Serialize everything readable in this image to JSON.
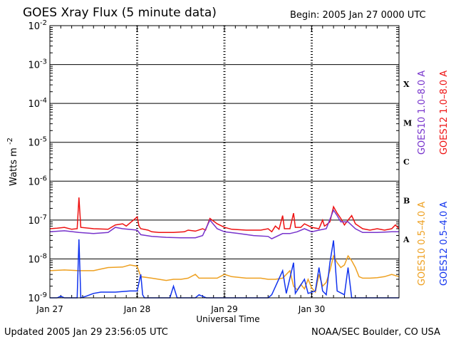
{
  "header": {
    "title": "GOES Xray Flux (5 minute data)",
    "begin": "Begin:  2005 Jan 27 0000 UTC"
  },
  "footer": {
    "updated": "Updated 2005 Jan 29 23:56:05 UTC",
    "credit": "NOAA/SEC Boulder, CO USA"
  },
  "chart_data": {
    "type": "line",
    "xlabel": "Universal Time",
    "ylabel_base": "Watts m",
    "ylabel_exp": "-2",
    "y_scale": "log",
    "ylim": [
      1e-09,
      0.01
    ],
    "xlim": [
      "2005-01-27 00:00",
      "2005-01-30 00:00"
    ],
    "x_ticks": [
      "Jan 27",
      "Jan 28",
      "Jan 29",
      "Jan 30"
    ],
    "y_ticks": [
      {
        "base": "10",
        "exp": "-2"
      },
      {
        "base": "10",
        "exp": "-3"
      },
      {
        "base": "10",
        "exp": "-4"
      },
      {
        "base": "10",
        "exp": "-5"
      },
      {
        "base": "10",
        "exp": "-6"
      },
      {
        "base": "10",
        "exp": "-7"
      },
      {
        "base": "10",
        "exp": "-8"
      },
      {
        "base": "10",
        "exp": "-9"
      }
    ],
    "flare_classes": [
      "X",
      "M",
      "C",
      "B",
      "A"
    ],
    "grid": "horizontal at each decade",
    "legend": [
      {
        "label": "GOES10 1.0–8.0 A",
        "color": "#7733cc"
      },
      {
        "label": "GOES12 1.0–8.0 A",
        "color": "#ee1111"
      },
      {
        "label": "GOES10 0.5–4.0 A",
        "color": "#eea020"
      },
      {
        "label": "GOES12 0.5–4.0 A",
        "color": "#1133ee"
      }
    ],
    "series": [
      {
        "name": "GOES12 1.0–8.0 A",
        "color": "#ee1111",
        "points": [
          [
            0,
            6e-08
          ],
          [
            2,
            6.2e-08
          ],
          [
            4,
            6.5e-08
          ],
          [
            6,
            5.8e-08
          ],
          [
            7.5,
            6e-08
          ],
          [
            8,
            3.8e-07
          ],
          [
            8.5,
            6.5e-08
          ],
          [
            12,
            6e-08
          ],
          [
            16,
            5.8e-08
          ],
          [
            18,
            7.5e-08
          ],
          [
            20,
            8e-08
          ],
          [
            21,
            7e-08
          ],
          [
            24,
            1.2e-07
          ],
          [
            24.5,
            7e-08
          ],
          [
            25,
            6e-08
          ],
          [
            27,
            5.5e-08
          ],
          [
            28,
            5e-08
          ],
          [
            30,
            4.8e-08
          ],
          [
            34,
            4.8e-08
          ],
          [
            37,
            5e-08
          ],
          [
            38,
            5.5e-08
          ],
          [
            40,
            5.2e-08
          ],
          [
            42,
            6e-08
          ],
          [
            42.8,
            5.5e-08
          ],
          [
            44,
            1.1e-07
          ],
          [
            46,
            8e-08
          ],
          [
            48,
            6.5e-08
          ],
          [
            50,
            5.8e-08
          ],
          [
            54,
            5.5e-08
          ],
          [
            58,
            5.5e-08
          ],
          [
            60,
            6e-08
          ],
          [
            61,
            5e-08
          ],
          [
            62,
            7e-08
          ],
          [
            63,
            5.8e-08
          ],
          [
            64,
            1.3e-07
          ],
          [
            64.5,
            6e-08
          ],
          [
            66,
            6e-08
          ],
          [
            67,
            1.5e-07
          ],
          [
            67.5,
            6.5e-08
          ],
          [
            69,
            6.5e-08
          ],
          [
            70,
            8e-08
          ],
          [
            72,
            6.5e-08
          ],
          [
            74,
            6e-08
          ],
          [
            75,
            1e-07
          ],
          [
            75.5,
            7e-08
          ],
          [
            76,
            7.5e-08
          ],
          [
            77,
            9e-08
          ],
          [
            78,
            2.2e-07
          ],
          [
            79,
            1.5e-07
          ],
          [
            80,
            1.1e-07
          ],
          [
            81,
            7.5e-08
          ],
          [
            82,
            1e-07
          ],
          [
            83,
            1.3e-07
          ],
          [
            84,
            8e-08
          ],
          [
            86,
            6e-08
          ],
          [
            88,
            5.5e-08
          ],
          [
            90,
            6e-08
          ],
          [
            92,
            5.5e-08
          ],
          [
            94,
            6e-08
          ],
          [
            95,
            7.5e-08
          ],
          [
            96,
            6e-08
          ]
        ]
      },
      {
        "name": "GOES10 1.0–8.0 A",
        "color": "#7733cc",
        "points": [
          [
            0,
            5e-08
          ],
          [
            4,
            5.3e-08
          ],
          [
            8,
            4.8e-08
          ],
          [
            12,
            4.5e-08
          ],
          [
            16,
            4.8e-08
          ],
          [
            18,
            6.5e-08
          ],
          [
            20,
            6e-08
          ],
          [
            24,
            5.5e-08
          ],
          [
            25,
            4.2e-08
          ],
          [
            28,
            3.8e-08
          ],
          [
            32,
            3.6e-08
          ],
          [
            36,
            3.5e-08
          ],
          [
            40,
            3.5e-08
          ],
          [
            42,
            4e-08
          ],
          [
            44,
            1e-07
          ],
          [
            46,
            6e-08
          ],
          [
            48,
            5e-08
          ],
          [
            52,
            4.5e-08
          ],
          [
            56,
            4e-08
          ],
          [
            60,
            3.8e-08
          ],
          [
            61,
            3.3e-08
          ],
          [
            64,
            4.5e-08
          ],
          [
            66,
            4.5e-08
          ],
          [
            68,
            5e-08
          ],
          [
            70,
            6e-08
          ],
          [
            72,
            5e-08
          ],
          [
            74,
            5.5e-08
          ],
          [
            76,
            6e-08
          ],
          [
            78,
            1.8e-07
          ],
          [
            79,
            1.3e-07
          ],
          [
            80,
            9e-08
          ],
          [
            82,
            9e-08
          ],
          [
            84,
            6e-08
          ],
          [
            86,
            4.8e-08
          ],
          [
            90,
            4.8e-08
          ],
          [
            94,
            5e-08
          ],
          [
            96,
            5e-08
          ]
        ]
      },
      {
        "name": "GOES10 0.5–4.0 A",
        "color": "#eea020",
        "points": [
          [
            0,
            5e-09
          ],
          [
            4,
            5.2e-09
          ],
          [
            8,
            5e-09
          ],
          [
            12,
            5e-09
          ],
          [
            14,
            5.5e-09
          ],
          [
            16,
            6e-09
          ],
          [
            20,
            6.2e-09
          ],
          [
            22,
            7e-09
          ],
          [
            24,
            6.5e-09
          ],
          [
            25,
            3.5e-09
          ],
          [
            28,
            3.2e-09
          ],
          [
            30,
            3e-09
          ],
          [
            32,
            2.8e-09
          ],
          [
            34,
            3e-09
          ],
          [
            36,
            3e-09
          ],
          [
            38,
            3.2e-09
          ],
          [
            40,
            4e-09
          ],
          [
            41,
            3.2e-09
          ],
          [
            44,
            3.2e-09
          ],
          [
            46,
            3.2e-09
          ],
          [
            48,
            4e-09
          ],
          [
            50,
            3.5e-09
          ],
          [
            54,
            3.2e-09
          ],
          [
            56,
            3.2e-09
          ],
          [
            58,
            3.2e-09
          ],
          [
            60,
            3e-09
          ],
          [
            62,
            3e-09
          ],
          [
            64,
            3.2e-09
          ],
          [
            66,
            5e-09
          ],
          [
            67,
            2e-09
          ],
          [
            68,
            1.6e-09
          ],
          [
            69,
            2.2e-09
          ],
          [
            70,
            1.7e-09
          ],
          [
            71,
            3e-09
          ],
          [
            72,
            1.8e-09
          ],
          [
            73,
            1.4e-09
          ],
          [
            74,
            4e-09
          ],
          [
            75,
            2e-09
          ],
          [
            76,
            2.5e-09
          ],
          [
            77,
            5e-09
          ],
          [
            78,
            1.2e-08
          ],
          [
            79,
            8e-09
          ],
          [
            80,
            6e-09
          ],
          [
            81,
            7e-09
          ],
          [
            82,
            1.2e-08
          ],
          [
            83,
            9e-09
          ],
          [
            84,
            6e-09
          ],
          [
            85,
            3.5e-09
          ],
          [
            86,
            3.2e-09
          ],
          [
            88,
            3.2e-09
          ],
          [
            90,
            3.3e-09
          ],
          [
            92,
            3.5e-09
          ],
          [
            94,
            4e-09
          ],
          [
            96,
            3.5e-09
          ]
        ]
      },
      {
        "name": "GOES12 0.5–4.0 A",
        "color": "#1133ee",
        "points": [
          [
            0,
            1e-09
          ],
          [
            2,
            1e-09
          ],
          [
            3,
            1.1e-09
          ],
          [
            4,
            1e-09
          ],
          [
            7.5,
            1e-09
          ],
          [
            8,
            3.2e-08
          ],
          [
            8.5,
            1e-09
          ],
          [
            10,
            1.1e-09
          ],
          [
            12,
            1.3e-09
          ],
          [
            14,
            1.4e-09
          ],
          [
            18,
            1.4e-09
          ],
          [
            22,
            1.5e-09
          ],
          [
            24,
            1.5e-09
          ],
          [
            25,
            4e-09
          ],
          [
            25.5,
            1.2e-09
          ],
          [
            26,
            1e-09
          ],
          [
            33,
            1e-09
          ],
          [
            34,
            2e-09
          ],
          [
            35,
            1e-09
          ],
          [
            40,
            1e-09
          ],
          [
            41,
            1.2e-09
          ],
          [
            43,
            1e-09
          ],
          [
            60,
            1e-09
          ],
          [
            61,
            1.2e-09
          ],
          [
            64,
            5e-09
          ],
          [
            65,
            1.3e-09
          ],
          [
            67,
            8e-09
          ],
          [
            67.5,
            1.3e-09
          ],
          [
            70,
            3e-09
          ],
          [
            71,
            1.3e-09
          ],
          [
            73,
            1.5e-09
          ],
          [
            74,
            6e-09
          ],
          [
            75,
            1.5e-09
          ],
          [
            76,
            1.2e-09
          ],
          [
            77,
            8e-09
          ],
          [
            78,
            3e-08
          ],
          [
            79,
            1.5e-09
          ],
          [
            81,
            1.2e-09
          ],
          [
            82,
            6e-09
          ],
          [
            83,
            1e-09
          ],
          [
            96,
            1e-09
          ]
        ]
      }
    ]
  }
}
